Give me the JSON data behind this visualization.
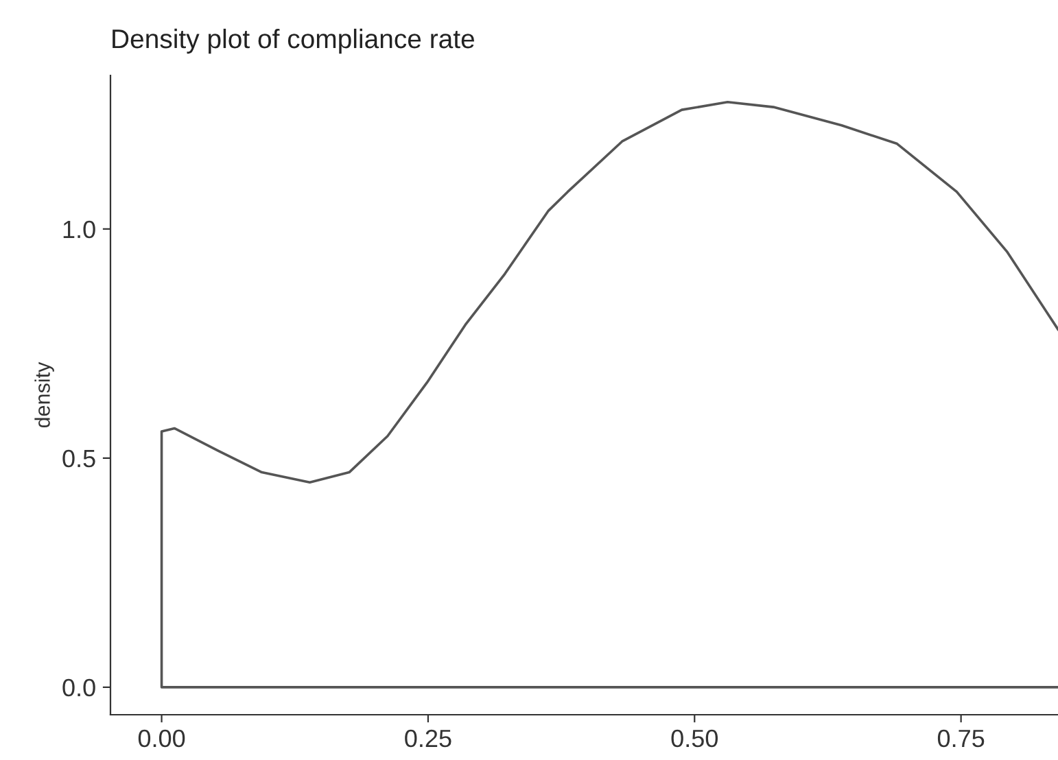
{
  "chart_data": {
    "type": "line",
    "title": "Density plot of compliance rate",
    "ylabel": "density",
    "series": [
      {
        "color": "#555555",
        "x": [
          0.841,
          0,
          0,
          0.012,
          0.053,
          0.094,
          0.139,
          0.176,
          0.212,
          0.249,
          0.285,
          0.322,
          0.338,
          0.363,
          0.381,
          0.432,
          0.488,
          0.531,
          0.574,
          0.638,
          0.69,
          0.746,
          0.793,
          0.841
        ],
        "values": [
          0,
          0,
          0.558,
          0.565,
          0.516,
          0.469,
          0.447,
          0.469,
          0.548,
          0.665,
          0.791,
          0.902,
          0.956,
          1.04,
          1.081,
          1.191,
          1.26,
          1.277,
          1.266,
          1.226,
          1.186,
          1.081,
          0.951,
          0.781
        ]
      }
    ],
    "xlim": [
      -0.048,
      0.841
    ],
    "ylim": [
      -0.06,
      1.335
    ],
    "xticks": [
      {
        "value": 0,
        "label": "0.00"
      },
      0.25,
      {
        "value": 0.5,
        "label": "0.50"
      },
      0.75
    ],
    "yticks": [
      {
        "value": 0,
        "label": "0.0"
      },
      0.5,
      {
        "value": 1,
        "label": "1.0"
      }
    ],
    "grid": false,
    "legend": false,
    "marker": "none",
    "line_style": "solid"
  }
}
